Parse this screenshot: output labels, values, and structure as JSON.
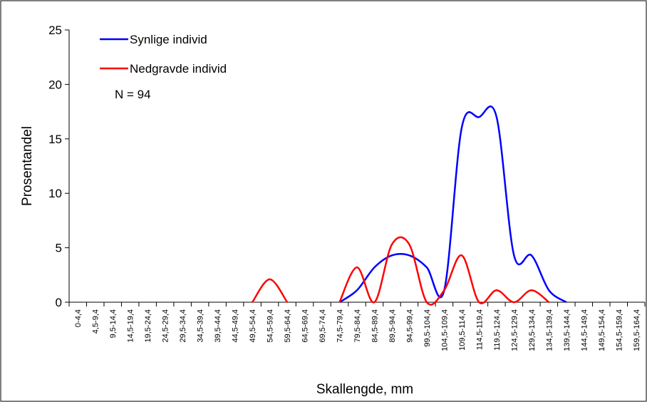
{
  "chart_data": {
    "type": "line",
    "x_label": "Skallengde, mm",
    "y_label": "Prosentandel",
    "annotation": "N = 94",
    "categories": [
      "0-4,4",
      "4,5-9,4",
      "9,5-14,4",
      "14,5-19,4",
      "19,5-24,4",
      "24,5-29,4",
      "29,5-34,4",
      "34,5-39,4",
      "39,5-44,4",
      "44,5-49,4",
      "49,5-54,4",
      "54,5-59,4",
      "59,5-64,4",
      "64,5-69,4",
      "69,5-74,4",
      "74,5-79,4",
      "79,5-84,4",
      "84,5-89,4",
      "89,5-94,4",
      "94,5-99,4",
      "99,5-104,4",
      "104,5-109,4",
      "109,5-114,4",
      "114,5-119,4",
      "119,5-124,4",
      "124,5-129,4",
      "129,5-134,4",
      "134,5-139,4",
      "139,5-144,4",
      "144,5-149,4",
      "149,5-154,4",
      "154,5-159,4",
      "159,5-164,4"
    ],
    "series": [
      {
        "name": "Synlige individ",
        "color": "#0000ff",
        "values": [
          null,
          null,
          null,
          null,
          null,
          null,
          null,
          null,
          null,
          null,
          null,
          null,
          null,
          null,
          null,
          0,
          1.1,
          3.2,
          4.3,
          4.3,
          3.2,
          1.1,
          16.0,
          17.0,
          17.0,
          4.3,
          4.3,
          1.1,
          0,
          null,
          null,
          null,
          null
        ]
      },
      {
        "name": "Nedgravde individ",
        "color": "#ff0000",
        "values": [
          null,
          null,
          null,
          null,
          null,
          null,
          null,
          null,
          null,
          null,
          0,
          2.1,
          0,
          null,
          null,
          0,
          3.2,
          0,
          5.3,
          5.3,
          0,
          1.1,
          4.3,
          0,
          1.1,
          0,
          1.1,
          0,
          null,
          null,
          null,
          null,
          null
        ]
      }
    ],
    "ylim": [
      0,
      25
    ],
    "yticks": [
      0,
      5,
      10,
      15,
      20,
      25
    ],
    "smooth": true
  }
}
